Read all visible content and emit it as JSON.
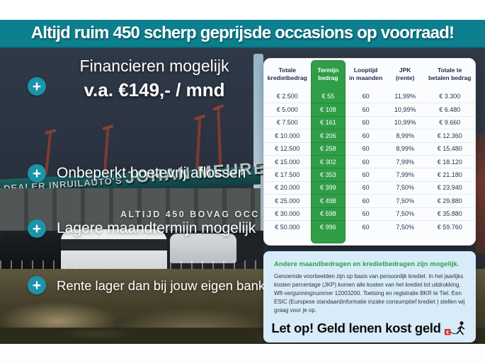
{
  "banner": {
    "text": "Altijd ruim 450 scherp geprijsde occasions op voorraad!"
  },
  "icons": {
    "plus": "+"
  },
  "usps": {
    "finance": {
      "line1": "Financieren mogelijk",
      "line2": "v.a. €149,- / mnd"
    },
    "item2": "Onbeperkt boetevrij aflossen",
    "item3": "Lagere maandtermijn mogelijk",
    "item4": "Rente lager dan bij jouw eigen bank"
  },
  "photo": {
    "dealer_sign_small": "DEALER INRUILAUTO'S",
    "dealer_sign_large": "JOHAN MEURE",
    "building_sign": "ALTIJD 450 BOVAG OCC SIONS"
  },
  "finance_table": {
    "headers": [
      {
        "line1": "Totale",
        "line2": "kredietbedrag"
      },
      {
        "line1": "Termijn",
        "line2": "bedrag"
      },
      {
        "line1": "Looptijd",
        "line2": "in maanden"
      },
      {
        "line1": "JPK",
        "line2": "(rente)"
      },
      {
        "line1": "Totale te",
        "line2": "betalen bedrag"
      }
    ],
    "rows": [
      [
        "€ 2.500",
        "€ 55",
        "60",
        "11,99%",
        "€ 3.300"
      ],
      [
        "€ 5.000",
        "€ 108",
        "60",
        "10,99%",
        "€ 6.480"
      ],
      [
        "€ 7.500",
        "€ 161",
        "60",
        "10,99%",
        "€ 9.660"
      ],
      [
        "€ 10.000",
        "€ 206",
        "60",
        "8,99%",
        "€ 12.360"
      ],
      [
        "€ 12.500",
        "€ 258",
        "60",
        "8,99%",
        "€ 15.480"
      ],
      [
        "€ 15.000",
        "€ 302",
        "60",
        "7,99%",
        "€ 18.120"
      ],
      [
        "€ 17.500",
        "€ 353",
        "60",
        "7,99%",
        "€ 21.180"
      ],
      [
        "€ 20.000",
        "€ 399",
        "60",
        "7,50%",
        "€ 23.940"
      ],
      [
        "€ 25.000",
        "€ 498",
        "60",
        "7,50%",
        "€ 29.880"
      ],
      [
        "€ 30.000",
        "€ 598",
        "60",
        "7,50%",
        "€ 35.880"
      ],
      [
        "€ 50.000",
        "€ 996",
        "60",
        "7,50%",
        "€ 59.760"
      ]
    ]
  },
  "disclaimer": {
    "heading": "Andere maandbedragen en kredietbedragen zijn mogelijk.",
    "body": "Genoemde voorbeelden zijn op basis van persoonlijk krediet. In het jaarlijks kosten percentage (JKP) komen alle kosten van het krediet tot uitdrukking. Wft-vergunningnummer 12003200. Toetsing en registratie BKR te Tiel. Een ESIC (Europese standaardinformatie inzake consumptief krediet ) stellen wij graag voor je op.",
    "warning": "Let op! Geld lenen kost geld"
  },
  "colors": {
    "banner_teal": "#0d7f8e",
    "plus_teal": "#1b93a8",
    "table_green": "#2f9e47",
    "heading_green": "#2ba14a",
    "panel_blue": "#d7ebf8",
    "navy_text": "#1c2b4b",
    "warning_red": "#d0342c"
  }
}
